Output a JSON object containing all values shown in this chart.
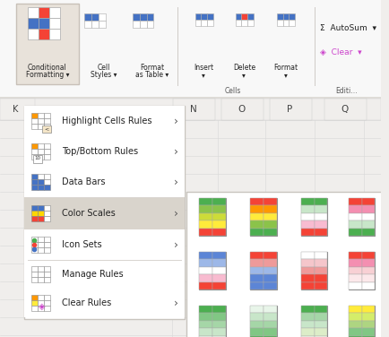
{
  "bg_color": "#f0eeec",
  "ribbon_bg": "#f8f8f8",
  "white": "#ffffff",
  "menu_highlight": "#d9d4cc",
  "col_labels": [
    "N",
    "O",
    "P",
    "Q"
  ],
  "menu_items": [
    {
      "label": "Highlight Cells Rules",
      "has_arrow": true,
      "highlighted": false
    },
    {
      "label": "Top/Bottom Rules",
      "has_arrow": true,
      "highlighted": false
    },
    {
      "label": "Data Bars",
      "has_arrow": true,
      "highlighted": false
    },
    {
      "label": "Color Scales",
      "has_arrow": true,
      "highlighted": true
    },
    {
      "label": "Icon Sets",
      "has_arrow": true,
      "highlighted": false
    },
    {
      "label": "Manage Rules",
      "has_arrow": false,
      "highlighted": false
    },
    {
      "label": "Clear Rules",
      "has_arrow": true,
      "highlighted": false
    }
  ],
  "submenu_row1": [
    {
      "rows": [
        "#4caf50",
        "#8bc34a",
        "#cddc39",
        "#ffeb3b",
        "#f44336"
      ]
    },
    {
      "rows": [
        "#f44336",
        "#ff9800",
        "#ffeb3b",
        "#8bc34a",
        "#4caf50"
      ]
    },
    {
      "rows": [
        "#4caf50",
        "#c8e6c9",
        "#ffffff",
        "#f8bbd0",
        "#f44336"
      ]
    },
    {
      "rows": [
        "#f44336",
        "#f48fb1",
        "#ffffff",
        "#c8e6c9",
        "#4caf50"
      ]
    }
  ],
  "submenu_row2": [
    {
      "rows": [
        "#5c85d6",
        "#9db8e8",
        "#ffffff",
        "#f8bbd0",
        "#f44336"
      ]
    },
    {
      "rows": [
        "#f44336",
        "#ef9a9a",
        "#9db8e8",
        "#5c85d6",
        "#5c85d6"
      ]
    },
    {
      "rows": [
        "#ffffff",
        "#f5c6cb",
        "#ef9a9a",
        "#f44336",
        "#f44336"
      ]
    },
    {
      "rows": [
        "#f44336",
        "#f48fb1",
        "#f8d0d4",
        "#fce8ea",
        "#ffffff"
      ]
    }
  ],
  "submenu_row3": [
    {
      "rows": [
        "#4caf50",
        "#81c784",
        "#a5d6a7",
        "#c8e6c9",
        "#e8f5e9"
      ]
    },
    {
      "rows": [
        "#e8f5e9",
        "#c8e6c9",
        "#a5d6a7",
        "#81c784",
        "#4caf50"
      ]
    },
    {
      "rows": [
        "#4caf50",
        "#a5d6a7",
        "#c8e6c9",
        "#dcedc8",
        "#f1f8e9"
      ]
    },
    {
      "rows": [
        "#ffeb3b",
        "#d4ed6a",
        "#aed581",
        "#81c784",
        "#4caf50"
      ]
    }
  ]
}
